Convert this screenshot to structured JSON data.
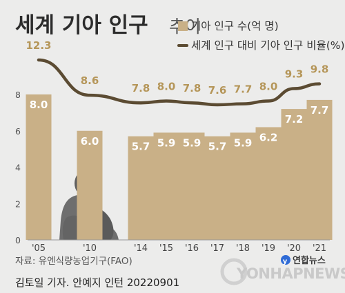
{
  "title": "세계 기아 인구",
  "subtitle": "추이",
  "legend": {
    "bar_label": "기아 인구 수(억 명)",
    "line_label": "세계 인구 대비 기아 인구 비율(%)"
  },
  "source": "자료: 유엔식량농업기구(FAO)",
  "credit": "김토일 기자. 안예지 인턴  20220901",
  "logo": {
    "name": "연합뉴스",
    "brand": "YONHAPNEWS"
  },
  "colors": {
    "bar": "#c9b087",
    "line": "#5b4b32",
    "line_label": "#b59659",
    "background": "#ececeb"
  },
  "chart_data": {
    "type": "bar",
    "categories": [
      "'05",
      "'10",
      "'14",
      "'15",
      "'16",
      "'17",
      "'18",
      "'19",
      "'20",
      "'21"
    ],
    "series": [
      {
        "name": "기아 인구 수(억 명)",
        "type": "bar",
        "axis": "left",
        "values": [
          8.0,
          6.0,
          5.7,
          5.9,
          5.9,
          5.7,
          5.9,
          6.2,
          7.2,
          7.7
        ]
      },
      {
        "name": "세계 인구 대비 기아 인구 비율(%)",
        "type": "line",
        "axis": "hidden",
        "values": [
          12.3,
          8.6,
          7.8,
          8.0,
          7.8,
          7.6,
          7.7,
          8.0,
          9.3,
          9.8
        ]
      }
    ],
    "yticks": [
      "0",
      "2",
      "4",
      "6",
      "8"
    ],
    "ylim": [
      0,
      8
    ],
    "grid": false,
    "legend_position": "top-right"
  }
}
